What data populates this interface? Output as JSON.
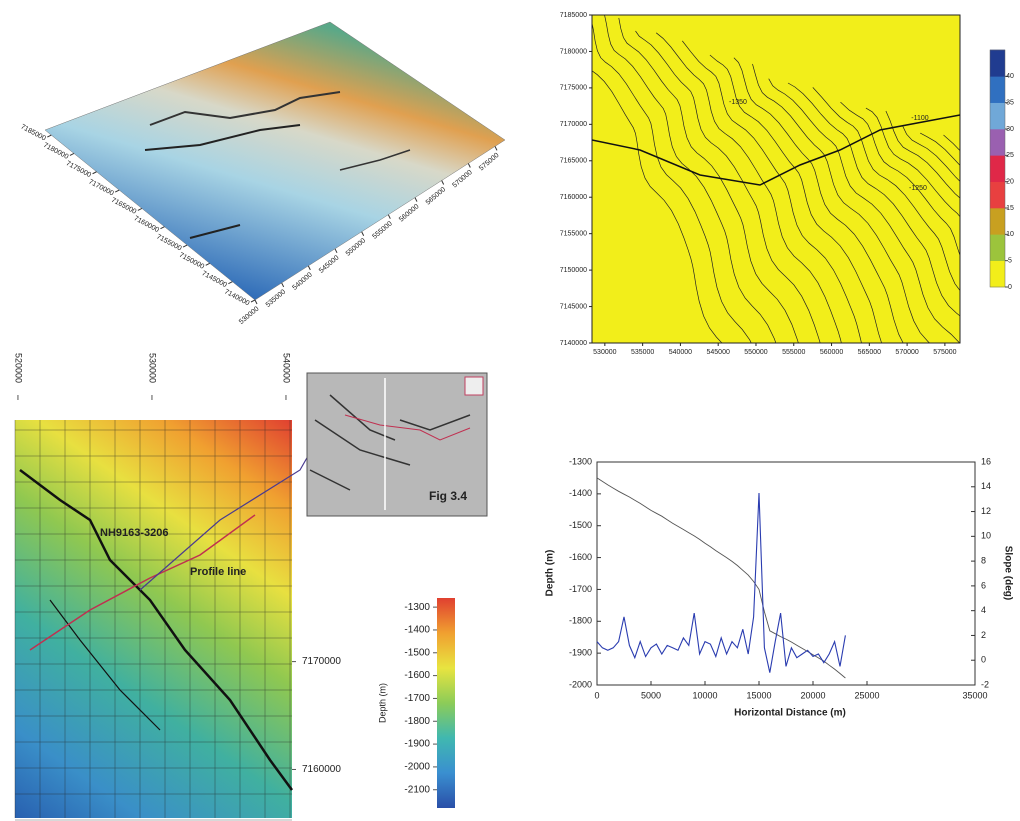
{
  "chart_data": [
    {
      "type": "surface",
      "xticks": [
        530000,
        535000,
        540000,
        545000,
        550000,
        555000,
        560000,
        565000,
        570000,
        575000
      ],
      "yticks": [
        7140000,
        7145000,
        7150000,
        7155000,
        7160000,
        7165000,
        7170000,
        7175000,
        7180000,
        7185000
      ],
      "xlim": [
        530000,
        575000
      ],
      "ylim": [
        7140000,
        7185000
      ]
    },
    {
      "type": "contour",
      "xlim": [
        528300,
        577000
      ],
      "ylim": [
        7140000,
        7185000
      ],
      "xticks": [
        530000,
        535000,
        540000,
        545000,
        550000,
        555000,
        560000,
        565000,
        570000,
        575000
      ],
      "yticks": [
        7140000,
        7145000,
        7150000,
        7155000,
        7160000,
        7165000,
        7170000,
        7175000,
        7180000,
        7185000
      ],
      "annotations": [
        "-1350",
        "-1100",
        "-1250"
      ],
      "colorbar": {
        "lim": [
          0,
          45
        ],
        "ticks": [
          0,
          5,
          10,
          15,
          20,
          25,
          30,
          35,
          40
        ],
        "colors": [
          "#f2ee1a",
          "#9cc43c",
          "#c8a020",
          "#e84040",
          "#e02848",
          "#9a60b0",
          "#70a8d8",
          "#3070c0",
          "#203c90"
        ]
      },
      "color": "#f2ee1a"
    },
    {
      "type": "heatmap",
      "xlim": [
        519780,
        540450
      ],
      "ylim": [
        7155500,
        7192400
      ],
      "xticks": [
        520000,
        530000,
        540000
      ],
      "yticks": [
        7160000,
        7170000
      ],
      "annotations": [
        "NH9163-3206",
        "Profile line",
        "Fig 3.4"
      ],
      "colorbar": {
        "label": "Depth (m)",
        "lim": [
          -2180,
          -1260
        ],
        "ticks": [
          -1300,
          -1400,
          -1500,
          -1600,
          -1700,
          -1800,
          -1900,
          -2000,
          -2100
        ],
        "colors": [
          "#2a4fa8",
          "#3a8fd0",
          "#40b8b0",
          "#8ccc58",
          "#e8e440",
          "#f0a030",
          "#e04030"
        ]
      }
    },
    {
      "type": "line",
      "x_label": "Horizontal Distance (m)",
      "y_label": "Depth (m)",
      "y2_label": "Slope (deg)",
      "xlim": [
        0,
        35000
      ],
      "xticks": [
        0,
        5000,
        10000,
        15000,
        20000,
        25000,
        35000
      ],
      "ylim": [
        -2000,
        -1300
      ],
      "yticks": [
        -1300,
        -1400,
        -1500,
        -1600,
        -1700,
        -1800,
        -1900,
        -2000
      ],
      "y2lim": [
        -2,
        16
      ],
      "y2ticks": [
        16,
        14,
        12,
        10,
        8,
        6,
        4,
        2,
        0,
        -2
      ],
      "x": [
        0,
        500,
        1000,
        1500,
        2000,
        2500,
        3000,
        3500,
        4000,
        4500,
        5000,
        5500,
        6000,
        6500,
        7000,
        7500,
        8000,
        8500,
        9000,
        9500,
        10000,
        10500,
        11000,
        11500,
        12000,
        12500,
        13000,
        13500,
        14000,
        14500,
        15000,
        15500,
        16000,
        16500,
        17000,
        17500,
        18000,
        18500,
        19000,
        19500,
        20000,
        20500,
        21000,
        21500,
        22000,
        22500,
        23000
      ],
      "series": [
        {
          "color": "#555555",
          "values": [
            -1350,
            -1361,
            -1372,
            -1382,
            -1392,
            -1401,
            -1410,
            -1420,
            -1430,
            -1441,
            -1452,
            -1461,
            -1470,
            -1481,
            -1492,
            -1502,
            -1512,
            -1522,
            -1532,
            -1543,
            -1555,
            -1566,
            -1578,
            -1589,
            -1600,
            -1612,
            -1625,
            -1640,
            -1655,
            -1675,
            -1700,
            -1770,
            -1830,
            -1839,
            -1848,
            -1856,
            -1865,
            -1875,
            -1885,
            -1895,
            -1905,
            -1915,
            -1925,
            -1938,
            -1950,
            -1964,
            -1978
          ]
        },
        {
          "color": "#2a3cb0",
          "axis": "y2",
          "values": [
            1.5,
            1,
            0.8,
            1,
            1.5,
            3.5,
            1.2,
            0.2,
            1.5,
            0.3,
            1,
            1.3,
            0.5,
            1.2,
            1,
            0.8,
            1.8,
            1.2,
            3.8,
            0.5,
            1.5,
            1.3,
            0.3,
            1.8,
            0.5,
            1.5,
            1,
            2.5,
            0.5,
            3.5,
            13.5,
            1,
            -1,
            1.5,
            3.8,
            -0.5,
            1,
            0.2,
            0.5,
            0.8,
            0.3,
            0.5,
            -0.2,
            0.5,
            1.5,
            -0.5,
            2
          ]
        }
      ]
    }
  ]
}
